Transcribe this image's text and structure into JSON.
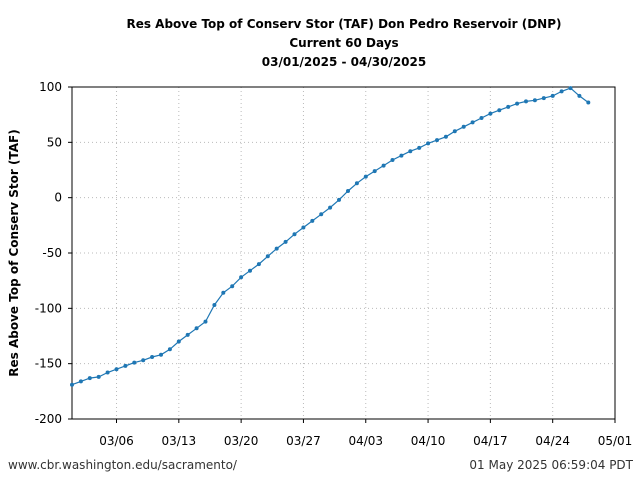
{
  "footer": {
    "source": "www.cbr.washington.edu/sacramento/",
    "timestamp": "01 May 2025 06:59:04 PDT"
  },
  "chart_data": {
    "type": "line",
    "title": [
      "Res Above Top of Conserv Stor (TAF) Don Pedro Reservoir (DNP)",
      "Current 60 Days",
      "03/01/2025 - 04/30/2025"
    ],
    "xlabel": "",
    "ylabel": "Res Above Top of Conserv Stor (TAF)",
    "x_tick_labels": [
      "03/06",
      "03/13",
      "03/20",
      "03/27",
      "04/03",
      "04/10",
      "04/17",
      "04/24",
      "05/01"
    ],
    "y_tick_labels": [
      "100",
      "50",
      "0",
      "-50",
      "-100",
      "-150",
      "-200"
    ],
    "xlim": [
      "2025-03-01",
      "2025-05-01"
    ],
    "ylim": [
      -200,
      100
    ],
    "grid": true,
    "line_color": "#1f77b4",
    "series": [
      {
        "x": [
          "2025-03-01",
          "2025-03-02",
          "2025-03-03",
          "2025-03-04",
          "2025-03-05",
          "2025-03-06",
          "2025-03-07",
          "2025-03-08",
          "2025-03-09",
          "2025-03-10",
          "2025-03-11",
          "2025-03-12",
          "2025-03-13",
          "2025-03-14",
          "2025-03-15",
          "2025-03-16",
          "2025-03-17",
          "2025-03-18",
          "2025-03-19",
          "2025-03-20",
          "2025-03-21",
          "2025-03-22",
          "2025-03-23",
          "2025-03-24",
          "2025-03-25",
          "2025-03-26",
          "2025-03-27",
          "2025-03-28",
          "2025-03-29",
          "2025-03-30",
          "2025-03-31",
          "2025-04-01",
          "2025-04-02",
          "2025-04-03",
          "2025-04-04",
          "2025-04-05",
          "2025-04-06",
          "2025-04-07",
          "2025-04-08",
          "2025-04-09",
          "2025-04-10",
          "2025-04-11",
          "2025-04-12",
          "2025-04-13",
          "2025-04-14",
          "2025-04-15",
          "2025-04-16",
          "2025-04-17",
          "2025-04-18",
          "2025-04-19",
          "2025-04-20",
          "2025-04-21",
          "2025-04-22",
          "2025-04-23",
          "2025-04-24",
          "2025-04-25",
          "2025-04-26",
          "2025-04-27",
          "2025-04-28"
        ],
        "values": [
          -169,
          -166,
          -163,
          -162,
          -158,
          -155,
          -152,
          -149,
          -147,
          -144,
          -142,
          -137,
          -130,
          -124,
          -118,
          -112,
          -97,
          -86,
          -80,
          -72,
          -66,
          -60,
          -53,
          -46,
          -40,
          -33,
          -27,
          -21,
          -15,
          -9,
          -2,
          6,
          13,
          19,
          24,
          29,
          34,
          38,
          42,
          45,
          49,
          52,
          55,
          60,
          64,
          68,
          72,
          76,
          79,
          82,
          85,
          87,
          88,
          90,
          92,
          96,
          99,
          92,
          86
        ]
      }
    ]
  }
}
